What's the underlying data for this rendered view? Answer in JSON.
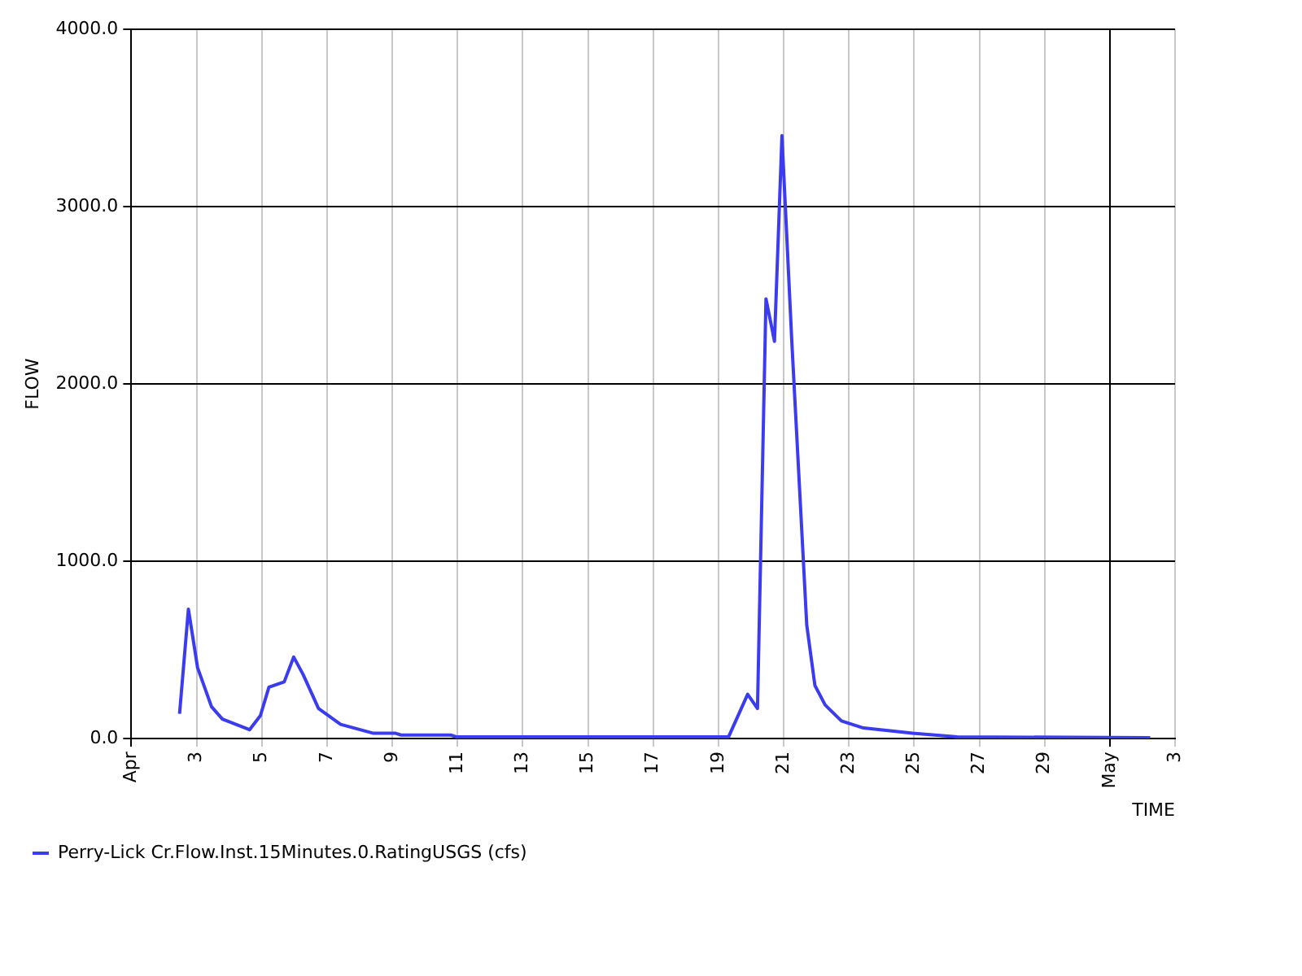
{
  "chart_data": {
    "type": "line",
    "xlabel": "TIME",
    "ylabel": "FLOW",
    "xlim": [
      "--04-01",
      "--05-03"
    ],
    "xticks": [
      {
        "value": "--04-01",
        "label": "Apr"
      },
      {
        "value": "--04-03",
        "label": "3"
      },
      {
        "value": "--04-05",
        "label": "5"
      },
      {
        "value": "--04-07",
        "label": "7"
      },
      {
        "value": "--04-09",
        "label": "9"
      },
      {
        "value": "--04-11",
        "label": "11"
      },
      {
        "value": "--04-13",
        "label": "13"
      },
      {
        "value": "--04-15",
        "label": "15"
      },
      {
        "value": "--04-17",
        "label": "17"
      },
      {
        "value": "--04-19",
        "label": "19"
      },
      {
        "value": "--04-21",
        "label": "21"
      },
      {
        "value": "--04-23",
        "label": "23"
      },
      {
        "value": "--04-25",
        "label": "25"
      },
      {
        "value": "--04-27",
        "label": "27"
      },
      {
        "value": "--04-29",
        "label": "29"
      },
      {
        "value": "--05-01",
        "label": "May"
      },
      {
        "value": "--05-03",
        "label": "3"
      }
    ],
    "ylim": [
      0,
      4000
    ],
    "yticks": [
      {
        "value": 0,
        "label": "0.0"
      },
      {
        "value": 1000,
        "label": "1000.0"
      },
      {
        "value": 2000,
        "label": "2000.0"
      },
      {
        "value": 3000,
        "label": "3000.0"
      },
      {
        "value": 4000,
        "label": "4000.0"
      }
    ],
    "grid": true,
    "legend": "bottom",
    "marker": "none",
    "line_style": "solid",
    "series": [
      {
        "name": "Perry-Lick Cr.Flow.Inst.15Minutes.0.RatingUSGS (cfs)",
        "color": "#3b3bf0",
        "x": [
          "--04-02T11:30",
          "--04-02T18:00",
          "--04-03T00:45",
          "--04-03T11:00",
          "--04-03T19:00",
          "--04-04T15:00",
          "--04-04T23:00",
          "--04-05T05:15",
          "--04-05T16:30",
          "--04-05T23:30",
          "--04-06T06:30",
          "--04-06T17:45",
          "--04-07T10:00",
          "--04-08T10:15",
          "--04-09T02:30",
          "--04-09T06:30",
          "--04-10T19:00",
          "--04-10T23:00",
          "--04-19T07:30",
          "--04-19T21:30",
          "--04-20T04:45",
          "--04-20T11:00",
          "--04-20T17:15",
          "--04-20T22:45",
          "--04-21T06:00",
          "--04-21T17:00",
          "--04-21T23:00",
          "--04-22T06:30",
          "--04-22T18:30",
          "--04-23T10:45",
          "--04-24T23:00",
          "--04-26T07:45",
          "--05-02T05:45"
        ],
        "values": [
          140,
          730,
          400,
          180,
          110,
          50,
          130,
          290,
          320,
          460,
          360,
          170,
          80,
          30,
          30,
          20,
          20,
          10,
          10,
          250,
          170,
          2480,
          2240,
          3400,
          2240,
          640,
          300,
          190,
          100,
          60,
          30,
          10,
          5
        ]
      }
    ]
  }
}
